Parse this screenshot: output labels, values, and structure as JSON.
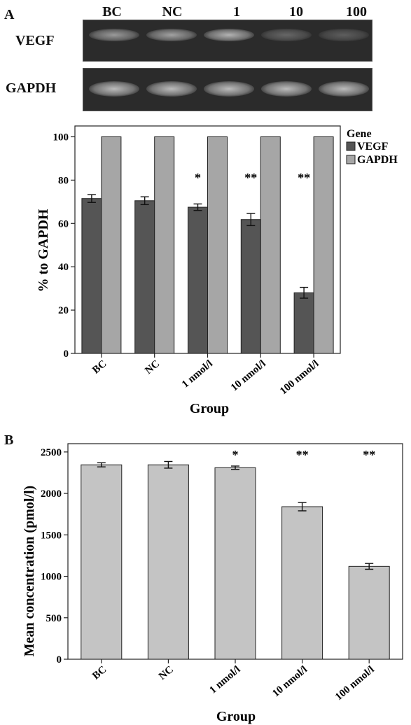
{
  "panels": {
    "a": "A",
    "b": "B"
  },
  "gel": {
    "lanes": [
      "BC",
      "NC",
      "1",
      "10",
      "100"
    ],
    "rows": [
      {
        "label": "VEGF",
        "intensity": [
          0.55,
          0.6,
          0.7,
          0.25,
          0.2
        ]
      },
      {
        "label": "GAPDH",
        "intensity": [
          0.75,
          0.75,
          0.75,
          0.75,
          0.75
        ]
      }
    ]
  },
  "chart_data": [
    {
      "type": "bar",
      "categories": [
        "BC",
        "NC",
        "1 nmol/l",
        "10 nmol/l",
        "100 nmol/l"
      ],
      "series": [
        {
          "name": "VEGF",
          "values": [
            71.5,
            70.5,
            67.5,
            61.8,
            28.0
          ],
          "errors": [
            1.8,
            1.8,
            1.5,
            2.8,
            2.5
          ],
          "color": "#555555"
        },
        {
          "name": "GAPDH",
          "values": [
            100,
            100,
            100,
            100,
            100
          ],
          "errors": [
            0,
            0,
            0,
            0,
            0
          ],
          "color": "#a6a6a6"
        }
      ],
      "annotations": [
        "",
        "",
        "*",
        "**",
        "**"
      ],
      "legend_title": "Gene",
      "legend_position": "right",
      "xlabel": "Group",
      "ylabel": "% to GAPDH",
      "yticks": [
        0,
        20,
        40,
        60,
        80,
        100
      ],
      "ylim": [
        0,
        105
      ]
    },
    {
      "type": "bar",
      "categories": [
        "BC",
        "NC",
        "1 nmol/l",
        "10 nmol/l",
        "100 nmol/l"
      ],
      "series": [
        {
          "values": [
            2345,
            2345,
            2310,
            1840,
            1120
          ],
          "errors": [
            25,
            40,
            20,
            50,
            35
          ],
          "color": "#c4c4c4"
        }
      ],
      "annotations": [
        "",
        "",
        "*",
        "**",
        "**"
      ],
      "xlabel": "Group",
      "ylabel": "Mean concentration (pmol/l)",
      "yticks": [
        0,
        500,
        1000,
        1500,
        2000,
        2500
      ],
      "ylim": [
        0,
        2600
      ]
    }
  ]
}
